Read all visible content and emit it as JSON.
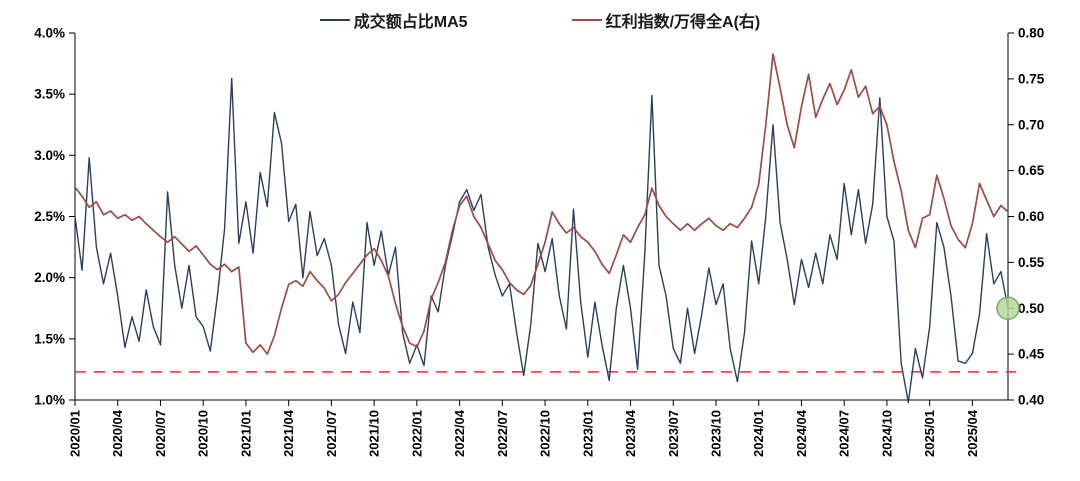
{
  "chart_data": {
    "type": "line",
    "title": "",
    "legend_position": "top-center",
    "grid": false,
    "x_unit": "month",
    "x_start": "2020/01",
    "x_step_months": 0.5,
    "x_tick_every_months": 3,
    "x_tick_labels": [
      "2020/01",
      "2020/04",
      "2020/07",
      "2020/10",
      "2021/01",
      "2021/04",
      "2021/07",
      "2021/10",
      "2022/01",
      "2022/04",
      "2022/07",
      "2022/10",
      "2023/01",
      "2023/04",
      "2023/07",
      "2023/10",
      "2024/01",
      "2024/04",
      "2024/07",
      "2024/10",
      "2025/01",
      "2025/04"
    ],
    "left_axis": {
      "min": 1.0,
      "max": 4.0,
      "ticks": [
        "4.0%",
        "3.5%",
        "3.0%",
        "2.5%",
        "2.0%",
        "1.5%",
        "1.0%"
      ]
    },
    "right_axis": {
      "min": 0.4,
      "max": 0.8,
      "ticks": [
        "0.80",
        "0.75",
        "0.70",
        "0.65",
        "0.60",
        "0.55",
        "0.50",
        "0.45",
        "0.40"
      ]
    },
    "series": [
      {
        "name": "成交额占比MA5",
        "axis": "left",
        "color": "#2c3e5d",
        "width": 1.4,
        "values": [
          2.5,
          2.06,
          2.98,
          2.25,
          1.95,
          2.2,
          1.85,
          1.43,
          1.68,
          1.48,
          1.9,
          1.6,
          1.45,
          2.7,
          2.1,
          1.75,
          2.1,
          1.68,
          1.6,
          1.4,
          1.85,
          2.4,
          3.63,
          2.28,
          2.62,
          2.2,
          2.86,
          2.58,
          3.35,
          3.1,
          2.46,
          2.6,
          2.0,
          2.54,
          2.18,
          2.32,
          2.1,
          1.62,
          1.38,
          1.8,
          1.55,
          2.45,
          2.1,
          2.38,
          2.02,
          2.25,
          1.55,
          1.3,
          1.45,
          1.28,
          1.85,
          1.72,
          2.1,
          2.35,
          2.62,
          2.72,
          2.55,
          2.68,
          2.25,
          2.02,
          1.85,
          1.95,
          1.55,
          1.2,
          1.62,
          2.28,
          2.05,
          2.32,
          1.85,
          1.58,
          2.56,
          1.8,
          1.35,
          1.8,
          1.45,
          1.16,
          1.75,
          2.1,
          1.75,
          1.25,
          2.2,
          3.49,
          2.1,
          1.85,
          1.42,
          1.3,
          1.75,
          1.38,
          1.7,
          2.08,
          1.78,
          1.95,
          1.42,
          1.15,
          1.55,
          2.3,
          1.95,
          2.5,
          3.25,
          2.45,
          2.15,
          1.78,
          2.15,
          1.92,
          2.2,
          1.95,
          2.35,
          2.15,
          2.77,
          2.35,
          2.72,
          2.28,
          2.6,
          3.47,
          2.5,
          2.3,
          1.3,
          0.98,
          1.42,
          1.18,
          1.6,
          2.45,
          2.25,
          1.85,
          1.32,
          1.3,
          1.38,
          1.7,
          2.36,
          1.95,
          2.05,
          1.75
        ]
      },
      {
        "name": "红利指数/万得全A(右)",
        "axis": "right",
        "color": "#9d4b44",
        "width": 1.7,
        "values": [
          0.632,
          0.622,
          0.61,
          0.616,
          0.602,
          0.606,
          0.598,
          0.602,
          0.596,
          0.6,
          0.592,
          0.585,
          0.578,
          0.572,
          0.578,
          0.57,
          0.562,
          0.568,
          0.558,
          0.548,
          0.542,
          0.548,
          0.54,
          0.545,
          0.462,
          0.452,
          0.46,
          0.45,
          0.47,
          0.5,
          0.526,
          0.53,
          0.524,
          0.54,
          0.53,
          0.522,
          0.508,
          0.515,
          0.528,
          0.538,
          0.548,
          0.558,
          0.565,
          0.552,
          0.535,
          0.505,
          0.48,
          0.462,
          0.458,
          0.475,
          0.51,
          0.528,
          0.55,
          0.585,
          0.612,
          0.622,
          0.6,
          0.588,
          0.57,
          0.552,
          0.542,
          0.528,
          0.52,
          0.515,
          0.525,
          0.548,
          0.572,
          0.605,
          0.592,
          0.582,
          0.588,
          0.578,
          0.572,
          0.562,
          0.548,
          0.538,
          0.558,
          0.58,
          0.572,
          0.588,
          0.602,
          0.631,
          0.612,
          0.6,
          0.592,
          0.585,
          0.592,
          0.585,
          0.592,
          0.598,
          0.59,
          0.585,
          0.592,
          0.588,
          0.598,
          0.61,
          0.635,
          0.7,
          0.777,
          0.74,
          0.7,
          0.675,
          0.72,
          0.755,
          0.708,
          0.728,
          0.745,
          0.722,
          0.738,
          0.76,
          0.73,
          0.742,
          0.712,
          0.72,
          0.7,
          0.66,
          0.628,
          0.585,
          0.566,
          0.598,
          0.602,
          0.645,
          0.62,
          0.59,
          0.575,
          0.566,
          0.592,
          0.636,
          0.618,
          0.6,
          0.612,
          0.605
        ]
      }
    ],
    "reference_line": {
      "axis": "left",
      "value": 1.23,
      "color": "#ee2c2c",
      "style": "dashed"
    },
    "end_marker": {
      "series": "成交额占比MA5",
      "position": "last-point",
      "fill": "#b2d598",
      "stroke": "#7ea55f",
      "opacity": 0.82,
      "radius": 11
    }
  },
  "legend": {
    "items": [
      {
        "label": "成交额占比MA5"
      },
      {
        "label": "红利指数/万得全A(右)"
      }
    ]
  }
}
